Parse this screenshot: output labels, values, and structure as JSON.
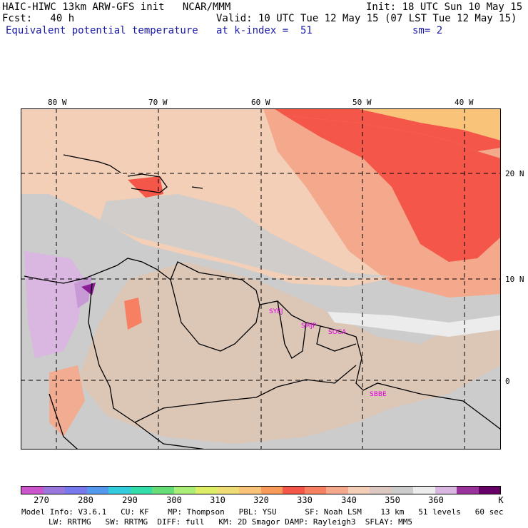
{
  "header": {
    "model_title": "HAIC-HIWC 13km ARW-GFS init   NCAR/MMM",
    "init": "Init: 18 UTC Sun 10 May 15",
    "fcst": "Fcst:   40 h",
    "valid": "Valid: 10 UTC Tue 12 May 15 (07 LST Tue 12 May 15)",
    "field": "Equivalent potential temperature",
    "level": "at k-index =  51",
    "smoothing": "sm= 2"
  },
  "map": {
    "lon_labels": [
      "80 W",
      "70 W",
      "60 W",
      "50 W",
      "40 W"
    ],
    "lat_labels": [
      "20 N",
      "10 N",
      "0"
    ],
    "stations": [
      "SYEJ",
      "SMJP",
      "SOCA",
      "SBBE"
    ],
    "colors": {
      "base": "#cccccc",
      "light_peach": "#f2cfb6",
      "salmon": "#f5a98c",
      "orange": "#f77f62",
      "red": "#f4564a",
      "yellow_orange": "#f9c37a",
      "lavender": "#d9b7e0",
      "purple": "#8a1d96",
      "white_patch": "#ececec"
    }
  },
  "colorbar": {
    "colors": [
      "#cc55cc",
      "#9977dd",
      "#7777ee",
      "#5599ee",
      "#33ccdd",
      "#33ddaa",
      "#66dd77",
      "#aaee77",
      "#ddee66",
      "#eedd77",
      "#f9c37a",
      "#f79a5a",
      "#f4564a",
      "#f77f62",
      "#f5a98c",
      "#f2cfb6",
      "#dcc8c0",
      "#cccccc",
      "#ececec",
      "#d9b7e0",
      "#993399",
      "#660066"
    ],
    "labels": [
      "270",
      "280",
      "290",
      "300",
      "310",
      "320",
      "330",
      "340",
      "350",
      "360",
      "K"
    ]
  },
  "footer": {
    "line1": "Model Info: V3.6.1   CU: KF    MP: Thompson   PBL: YSU      SF: Noah LSM    13 km   51 levels   60 sec",
    "line2": "LW: RRTMG   SW: RRTMG  DIFF: full   KM: 2D Smagor DAMP: Rayleigh3  SFLAY: MM5"
  }
}
